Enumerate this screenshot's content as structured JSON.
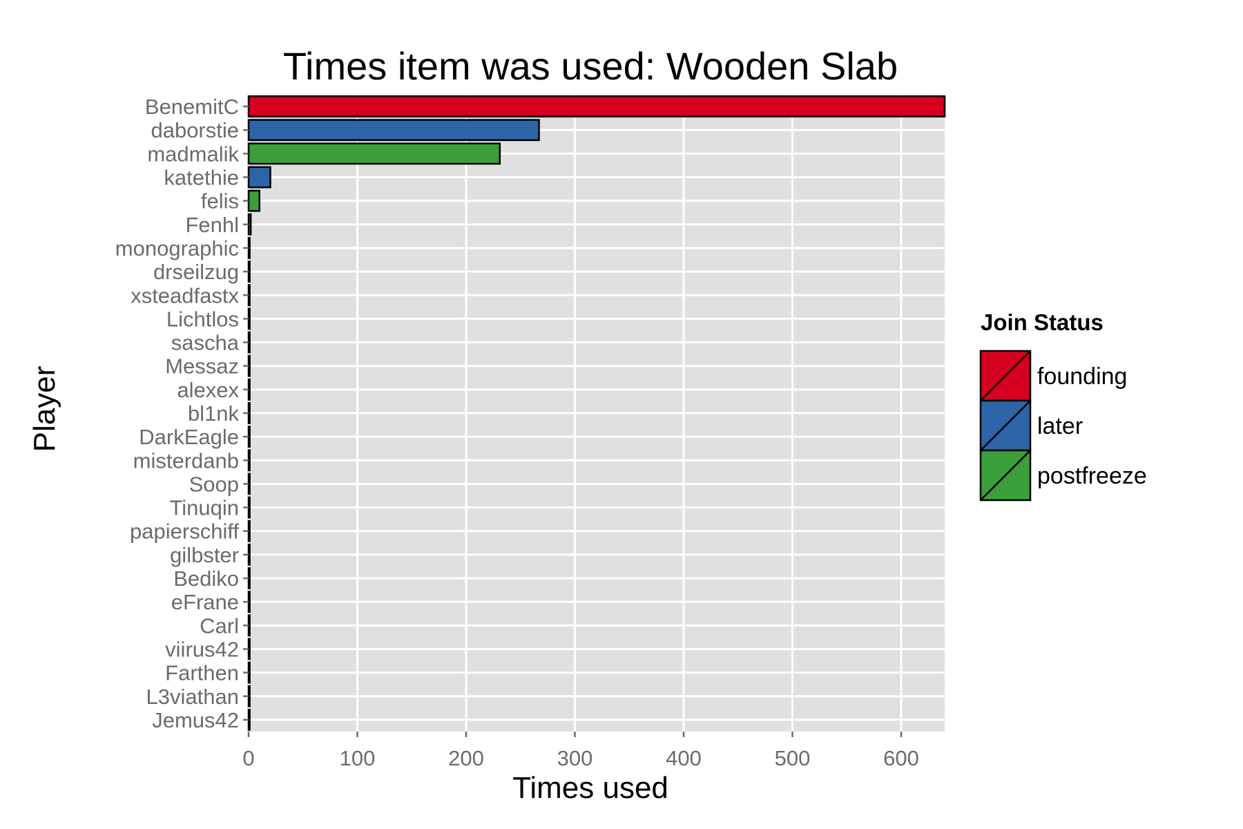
{
  "chart_data": {
    "type": "bar",
    "orientation": "horizontal",
    "title": "Times item was used: Wooden Slab",
    "xlabel": "Times used",
    "ylabel": "Player",
    "xlim": [
      0,
      640
    ],
    "xticks": [
      0,
      100,
      200,
      300,
      400,
      500,
      600
    ],
    "grid": true,
    "legend": {
      "title": "Join Status",
      "position": "right",
      "entries": [
        {
          "name": "founding",
          "color": "#d7001f"
        },
        {
          "name": "later",
          "color": "#2c66a8"
        },
        {
          "name": "postfreeze",
          "color": "#3a9f3a"
        }
      ]
    },
    "categories": [
      "BenemitC",
      "daborstie",
      "madmalik",
      "katethie",
      "felis",
      "Fenhl",
      "monographic",
      "drseilzug",
      "xsteadfastx",
      "Lichtlos",
      "sascha",
      "Messaz",
      "alexex",
      "bl1nk",
      "DarkEagle",
      "misterdanb",
      "Soop",
      "Tinuqin",
      "papierschiff",
      "gilbster",
      "Bediko",
      "eFrane",
      "Carl",
      "viirus42",
      "Farthen",
      "L3viathan",
      "Jemus42"
    ],
    "values": [
      640,
      267,
      231,
      20,
      10,
      2,
      1,
      1,
      1,
      1,
      1,
      1,
      1,
      1,
      1,
      1,
      1,
      1,
      1,
      1,
      1,
      1,
      1,
      1,
      1,
      1,
      1
    ],
    "groups": [
      "founding",
      "later",
      "postfreeze",
      "later",
      "postfreeze",
      "later",
      "later",
      "later",
      "later",
      "later",
      "later",
      "later",
      "later",
      "later",
      "later",
      "later",
      "later",
      "later",
      "later",
      "later",
      "later",
      "later",
      "later",
      "later",
      "later",
      "later",
      "later"
    ],
    "colors": {
      "panel_background": "#e0e0e0",
      "gridline": "#ffffff",
      "bar_outline": "#000000"
    }
  }
}
